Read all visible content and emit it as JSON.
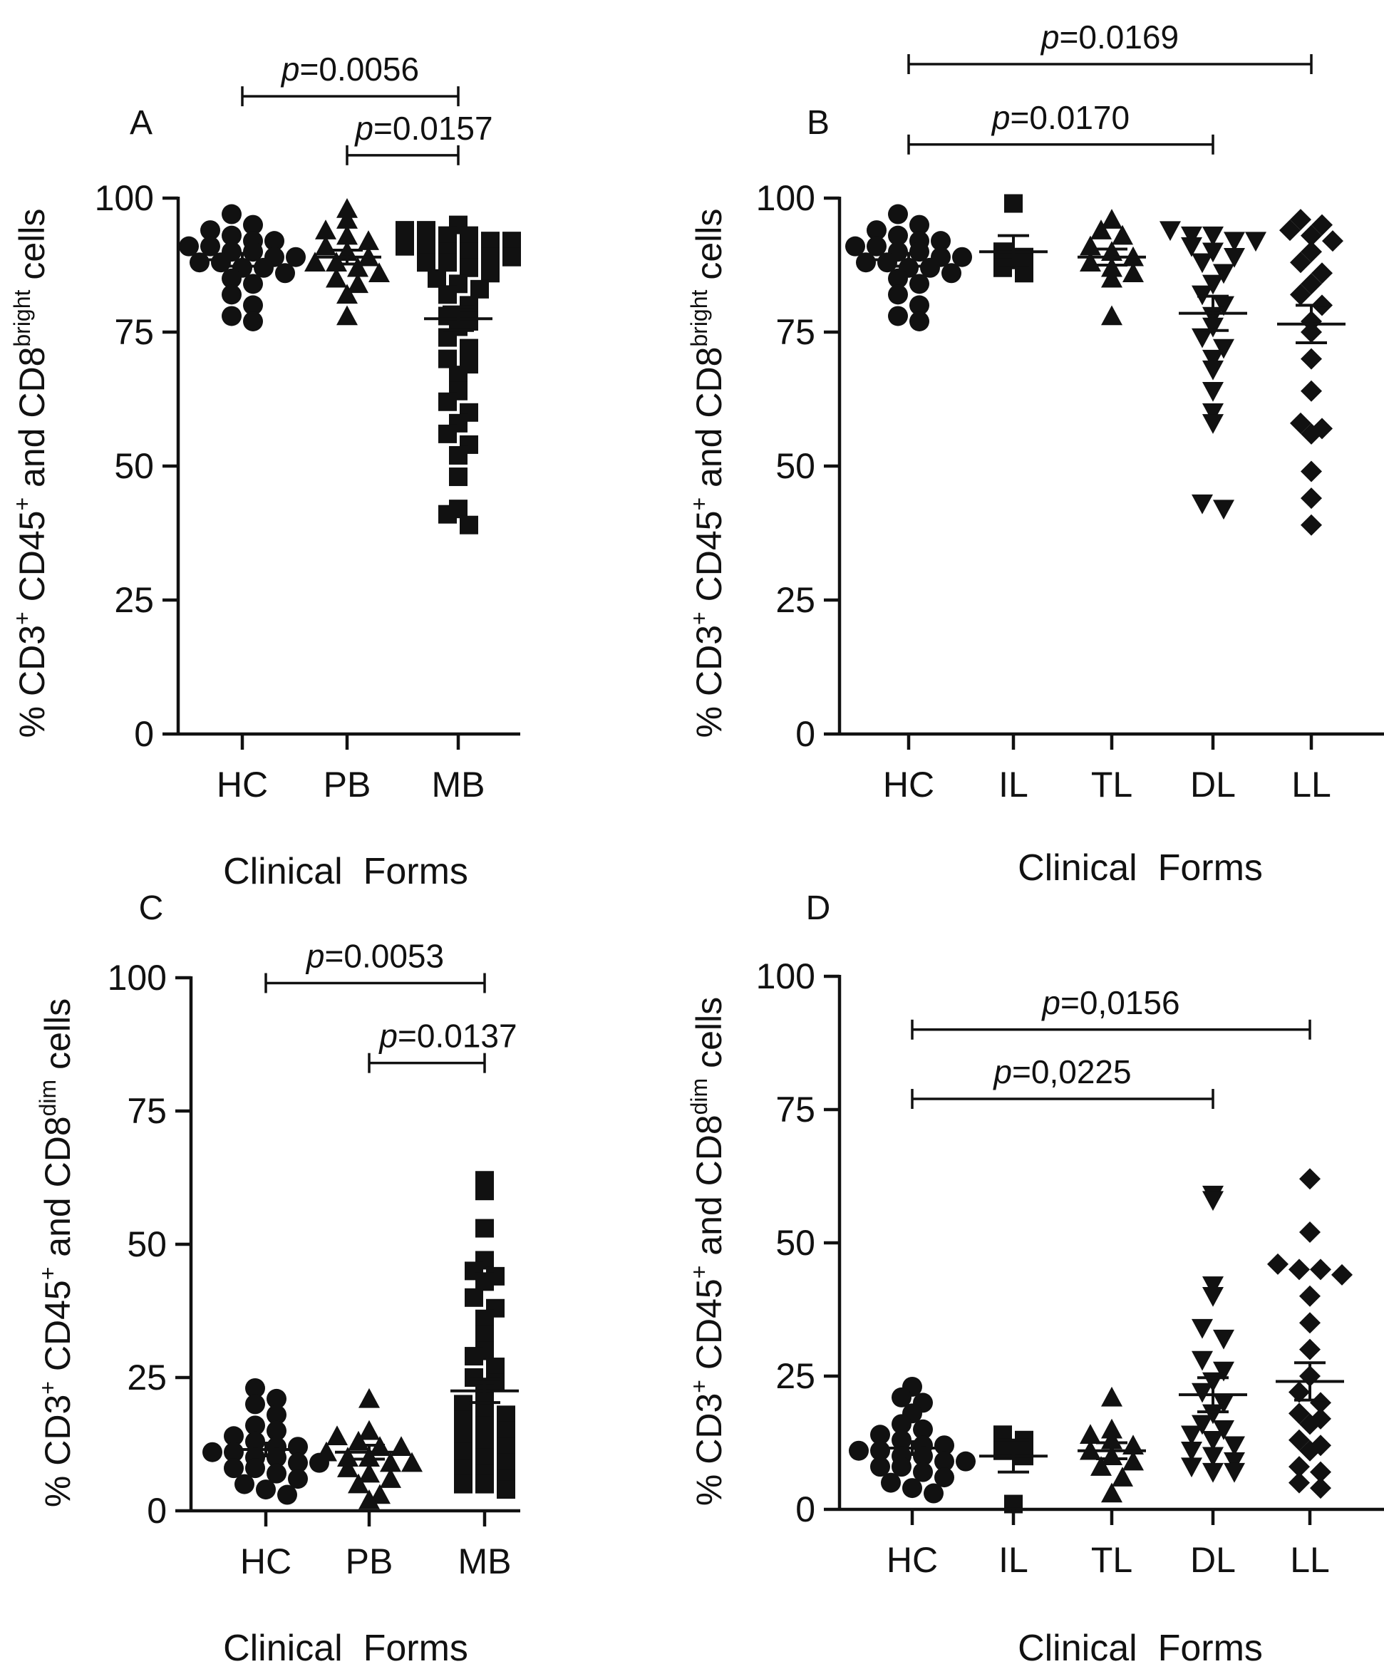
{
  "figure": {
    "panels": [
      {
        "id": "A",
        "label": "A",
        "ylabel": {
          "base": "% CD3",
          "sup1": "+",
          "mid": " CD45",
          "sup2": "+",
          "and": " and CD8",
          "sup3": "bright",
          "tail": " cells"
        },
        "xlabel": "Clinical  Forms",
        "categories": [
          "HC",
          "PB",
          "MB"
        ],
        "ylim": [
          0,
          100
        ],
        "yticks": [
          0,
          25,
          50,
          75,
          100
        ],
        "brackets": [
          {
            "prefix": "p",
            "text": "=0.0056",
            "from": 0,
            "to": 2,
            "y": 119
          },
          {
            "prefix": "p",
            "text": "=0.0157",
            "from": 1,
            "to": 2,
            "y": 108
          }
        ]
      },
      {
        "id": "B",
        "label": "B",
        "ylabel": {
          "base": "% CD3",
          "sup1": "+",
          "mid": " CD45",
          "sup2": "+",
          "and": " and CD8",
          "sup3": "bright",
          "tail": " cells"
        },
        "xlabel": "Clinical  Forms",
        "categories": [
          "HC",
          "IL",
          "TL",
          "DL",
          "LL"
        ],
        "ylim": [
          0,
          100
        ],
        "yticks": [
          0,
          25,
          50,
          75,
          100
        ],
        "brackets": [
          {
            "prefix": "p",
            "text": "=0.0169",
            "from": 0,
            "to": 4,
            "y": 125
          },
          {
            "prefix": "p",
            "text": "=0.0170",
            "from": 0,
            "to": 3,
            "y": 110
          }
        ]
      },
      {
        "id": "C",
        "label": "C",
        "ylabel": {
          "base": "% CD3",
          "sup1": "+",
          "mid": " CD45",
          "sup2": "+",
          "and": " and CD8",
          "sup3": "dim",
          "tail": " cells"
        },
        "xlabel": "Clinical  Forms",
        "categories": [
          "HC",
          "PB",
          "MB"
        ],
        "ylim": [
          0,
          100
        ],
        "yticks": [
          0,
          25,
          50,
          75,
          100
        ],
        "brackets": [
          {
            "prefix": "p",
            "text": "=0.0053",
            "from": 0,
            "to": 2,
            "y": 99
          },
          {
            "prefix": "p",
            "text": "=0.0137",
            "from": 1,
            "to": 2,
            "y": 84
          }
        ]
      },
      {
        "id": "D",
        "label": "D",
        "ylabel": {
          "base": "% CD3",
          "sup1": "+",
          "mid": " CD45",
          "sup2": "+",
          "and": " and CD8",
          "sup3": "dim",
          "tail": " cells"
        },
        "xlabel": "Clinical  Forms",
        "categories": [
          "HC",
          "IL",
          "TL",
          "DL",
          "LL"
        ],
        "ylim": [
          0,
          100
        ],
        "yticks": [
          0,
          25,
          50,
          75,
          100
        ],
        "brackets": [
          {
            "prefix": "p",
            "text": "=0,0156",
            "from": 0,
            "to": 4,
            "y": 90
          },
          {
            "prefix": "p",
            "text": "=0,0225",
            "from": 0,
            "to": 3,
            "y": 77
          }
        ]
      }
    ]
  },
  "chart_data": [
    {
      "type": "scatter",
      "panel": "A",
      "categories": [
        "HC",
        "PB",
        "MB"
      ],
      "ylabel": "% CD3+ CD45+ and CD8bright cells",
      "xlabel": "Clinical  Forms",
      "ylim": [
        0,
        100
      ],
      "series": [
        {
          "category": "HC",
          "marker": "circle",
          "mean": 88.5,
          "sem": 1.2,
          "values": [
            97,
            95,
            94,
            93,
            92,
            92,
            91,
            91,
            90,
            90,
            89,
            89,
            88,
            88,
            87,
            87,
            86,
            85,
            84,
            82,
            80,
            78,
            77
          ]
        },
        {
          "category": "PB",
          "marker": "triangle",
          "mean": 89,
          "sem": 1.3,
          "values": [
            98,
            96,
            94,
            93,
            92,
            91,
            90,
            89,
            88,
            88,
            87,
            86,
            85,
            84,
            82,
            78
          ]
        },
        {
          "category": "MB",
          "marker": "square",
          "mean": 77.5,
          "sem": 2.2,
          "values": [
            95,
            94,
            94,
            93,
            93,
            92,
            92,
            91,
            91,
            90,
            90,
            89,
            89,
            88,
            88,
            87,
            86,
            85,
            84,
            83,
            82,
            80,
            78,
            77,
            76,
            74,
            72,
            70,
            69,
            67,
            64,
            62,
            60,
            58,
            56,
            54,
            52,
            48,
            42,
            41,
            39
          ]
        }
      ]
    },
    {
      "type": "scatter",
      "panel": "B",
      "categories": [
        "HC",
        "IL",
        "TL",
        "DL",
        "LL"
      ],
      "ylabel": "% CD3+ CD45+ and CD8bright cells",
      "xlabel": "Clinical  Forms",
      "ylim": [
        0,
        100
      ],
      "series": [
        {
          "category": "HC",
          "marker": "circle",
          "mean": 88.5,
          "sem": 1.2,
          "values": [
            97,
            95,
            94,
            93,
            92,
            92,
            91,
            91,
            90,
            90,
            89,
            89,
            88,
            88,
            87,
            87,
            86,
            85,
            84,
            82,
            80,
            78,
            77
          ]
        },
        {
          "category": "IL",
          "marker": "square",
          "mean": 90,
          "sem": 3,
          "values": [
            99,
            90,
            89,
            87,
            86
          ]
        },
        {
          "category": "TL",
          "marker": "triangle",
          "mean": 89,
          "sem": 1.5,
          "values": [
            96,
            94,
            93,
            91,
            90,
            89,
            88,
            87,
            86,
            85,
            78
          ]
        },
        {
          "category": "DL",
          "marker": "inverted-triangle",
          "mean": 78.5,
          "sem": 3.2,
          "values": [
            94,
            93,
            93,
            92,
            92,
            91,
            90,
            89,
            88,
            86,
            84,
            82,
            80,
            78,
            76,
            74,
            72,
            70,
            68,
            64,
            60,
            58,
            43,
            42
          ]
        },
        {
          "category": "LL",
          "marker": "diamond",
          "mean": 76.5,
          "sem": 3.5,
          "values": [
            96,
            95,
            94,
            93,
            92,
            90,
            88,
            86,
            84,
            82,
            80,
            77,
            75,
            70,
            64,
            58,
            57,
            56,
            49,
            44,
            39
          ]
        }
      ]
    },
    {
      "type": "scatter",
      "panel": "C",
      "categories": [
        "HC",
        "PB",
        "MB"
      ],
      "ylabel": "% CD3+ CD45+ and CD8dim cells",
      "xlabel": "Clinical  Forms",
      "ylim": [
        0,
        100
      ],
      "series": [
        {
          "category": "HC",
          "marker": "circle",
          "mean": 11.5,
          "sem": 1.2,
          "values": [
            23,
            21,
            20,
            18,
            16,
            15,
            14,
            13,
            12,
            12,
            11,
            11,
            10,
            10,
            9,
            9,
            8,
            8,
            7,
            6,
            5,
            4,
            3
          ]
        },
        {
          "category": "PB",
          "marker": "triangle",
          "mean": 11,
          "sem": 1.3,
          "values": [
            21,
            15,
            14,
            13,
            12,
            12,
            11,
            10,
            10,
            9,
            9,
            8,
            7,
            6,
            5,
            3,
            2
          ]
        },
        {
          "category": "MB",
          "marker": "square",
          "mean": 22.5,
          "sem": 2.2,
          "values": [
            62,
            60,
            53,
            47,
            45,
            44,
            43,
            40,
            38,
            36,
            33,
            30,
            29,
            27,
            25,
            24,
            22,
            20,
            19,
            18,
            17,
            16,
            15,
            14,
            13,
            12,
            11,
            10,
            9,
            8,
            7,
            6,
            5,
            5,
            4
          ]
        }
      ]
    },
    {
      "type": "scatter",
      "panel": "D",
      "categories": [
        "HC",
        "IL",
        "TL",
        "DL",
        "LL"
      ],
      "ylabel": "% CD3+ CD45+ and CD8dim cells",
      "xlabel": "Clinical  Forms",
      "ylim": [
        0,
        100
      ],
      "series": [
        {
          "category": "HC",
          "marker": "circle",
          "mean": 11.5,
          "sem": 1.2,
          "values": [
            23,
            21,
            20,
            18,
            16,
            15,
            14,
            13,
            12,
            12,
            11,
            11,
            10,
            10,
            9,
            9,
            8,
            8,
            7,
            6,
            5,
            4,
            3
          ]
        },
        {
          "category": "IL",
          "marker": "square",
          "mean": 10,
          "sem": 3,
          "values": [
            14,
            13,
            11,
            10,
            1
          ]
        },
        {
          "category": "TL",
          "marker": "triangle",
          "mean": 11,
          "sem": 1.5,
          "values": [
            21,
            15,
            14,
            13,
            12,
            11,
            10,
            9,
            8,
            6,
            3
          ]
        },
        {
          "category": "DL",
          "marker": "inverted-triangle",
          "mean": 21.5,
          "sem": 3.2,
          "values": [
            59,
            58,
            42,
            40,
            34,
            32,
            28,
            26,
            24,
            22,
            20,
            18,
            16,
            15,
            14,
            13,
            12,
            11,
            10,
            9,
            8,
            7,
            7
          ]
        },
        {
          "category": "LL",
          "marker": "diamond",
          "mean": 24,
          "sem": 3.5,
          "values": [
            62,
            52,
            46,
            45,
            45,
            44,
            40,
            35,
            30,
            25,
            22,
            20,
            18,
            17,
            16,
            13,
            12,
            11,
            8,
            7,
            5,
            4
          ]
        }
      ]
    }
  ]
}
